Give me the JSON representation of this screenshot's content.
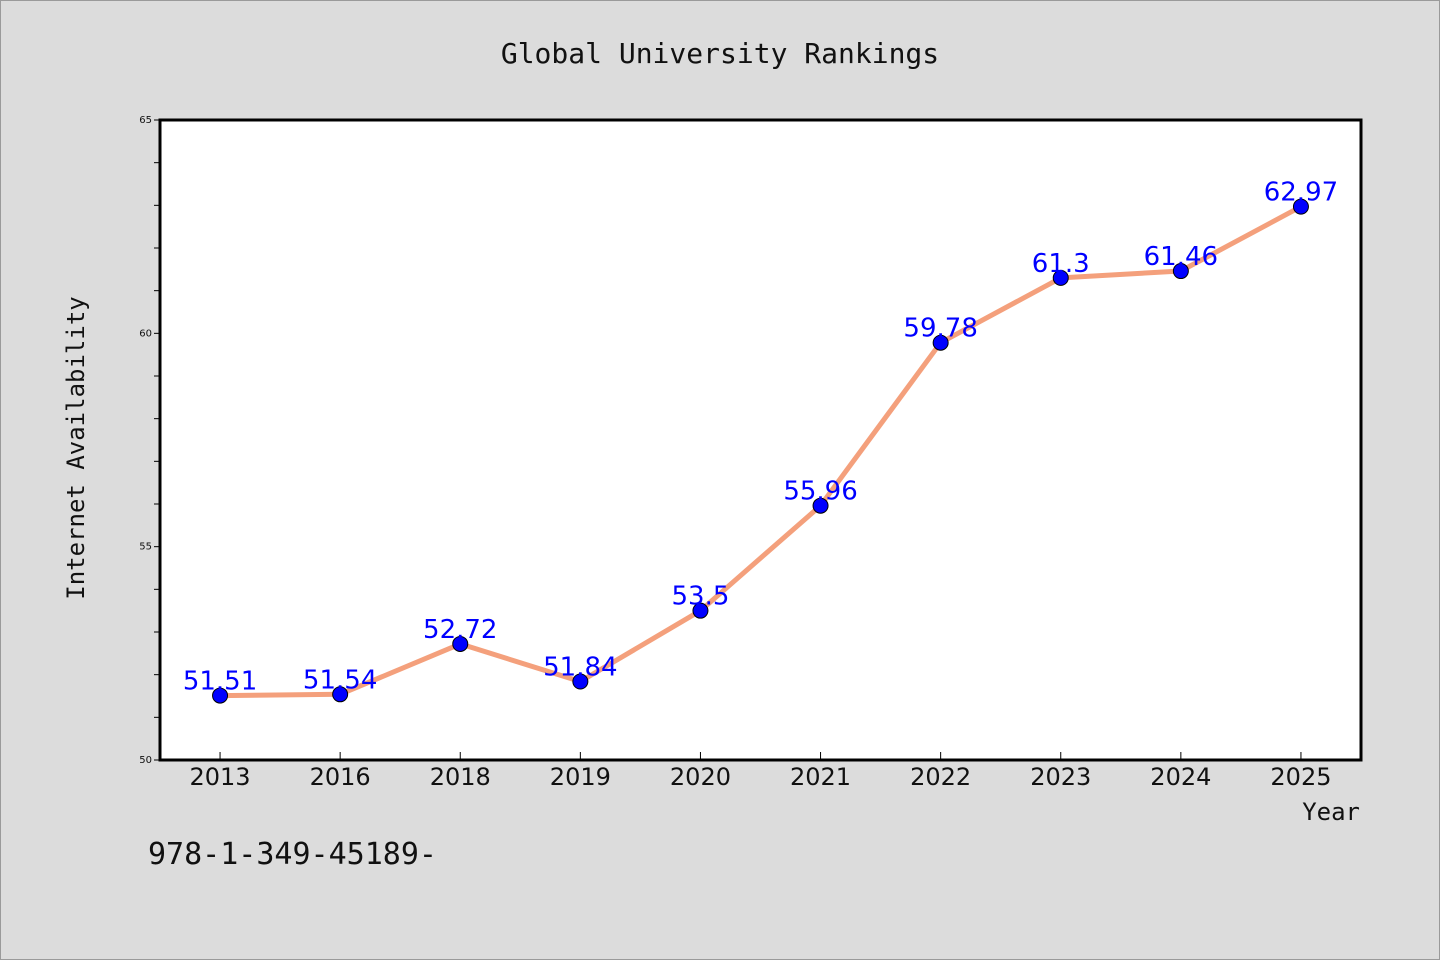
{
  "chart_data": {
    "type": "line",
    "title": "Global University Rankings",
    "xlabel": "Year",
    "ylabel": "Internet Availability",
    "categories": [
      "2013",
      "2016",
      "2018",
      "2019",
      "2020",
      "2021",
      "2022",
      "2023",
      "2024",
      "2025"
    ],
    "series": [
      {
        "values": [
          51.51,
          51.54,
          52.72,
          51.84,
          53.5,
          55.96,
          59.78,
          61.3,
          61.46,
          62.97
        ],
        "data_labels": [
          "51.51",
          "51.54",
          "52.72",
          "51.84",
          "53.5",
          "55.96",
          "59.78",
          "61.3",
          "61.46",
          "62.97"
        ]
      }
    ],
    "ylim": [
      50,
      65
    ],
    "y_ticks": [
      "50",
      "55",
      "60",
      "65"
    ],
    "grid": false,
    "legend": "none",
    "colors": {
      "line": "#f4a07c",
      "marker": "#0000ff",
      "data_label": "#0000ff",
      "background": "#dcdcdc",
      "plot_background": "#ffffff"
    }
  },
  "footnote": "978-1-349-45189-"
}
